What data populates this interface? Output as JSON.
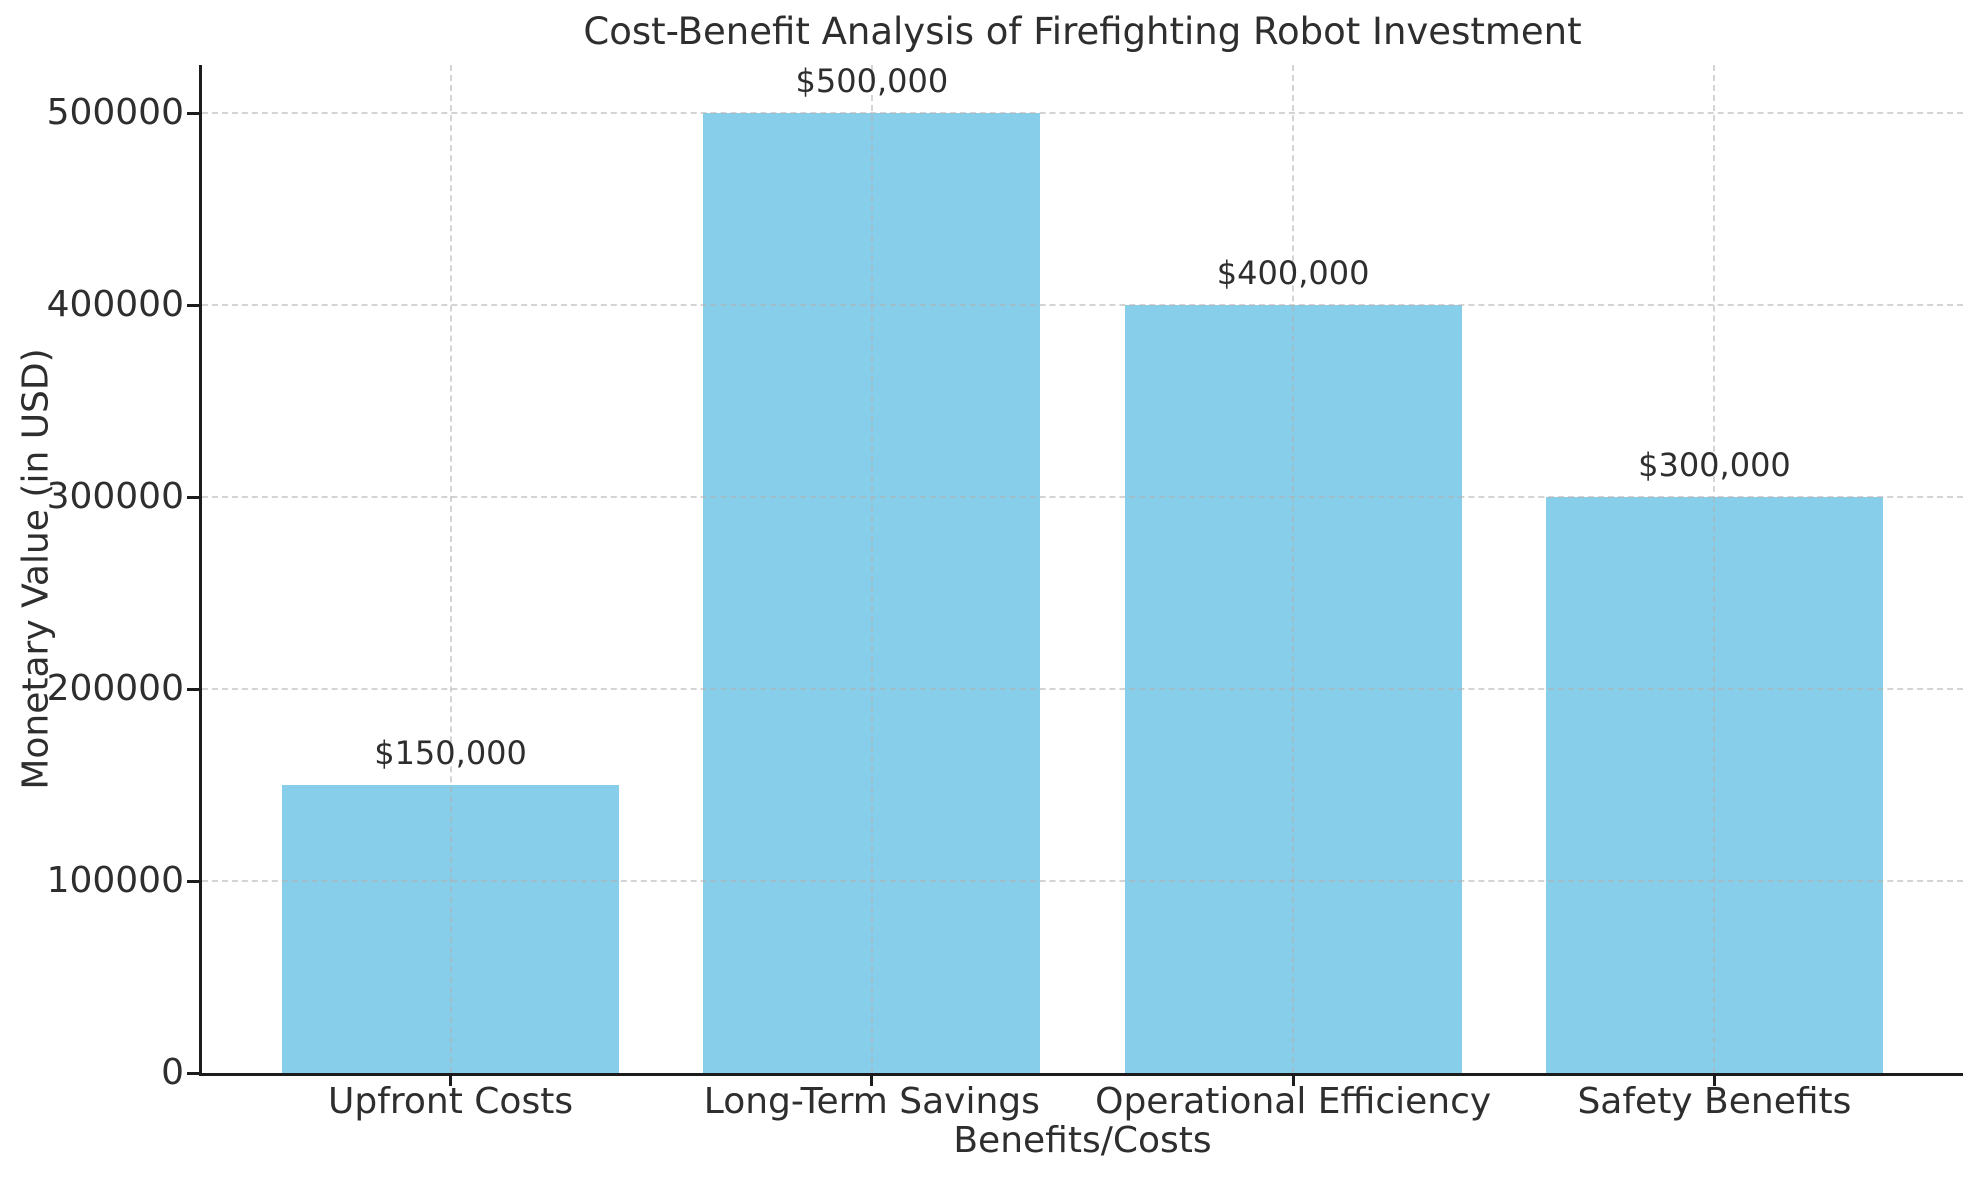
{
  "chart_data": {
    "type": "bar",
    "title": "Cost-Benefit Analysis of Firefighting Robot Investment",
    "xlabel": "Benefits/Costs",
    "ylabel": "Monetary Value (in USD)",
    "categories": [
      "Upfront Costs",
      "Long-Term Savings",
      "Operational Efficiency",
      "Safety Benefits"
    ],
    "values": [
      150000,
      500000,
      400000,
      300000
    ],
    "bar_value_labels": [
      "$150,000",
      "$500,000",
      "$400,000",
      "$300,000"
    ],
    "ylim": [
      0,
      525000
    ],
    "yticks": [
      0,
      100000,
      200000,
      300000,
      400000,
      500000
    ],
    "ytick_labels": [
      "0",
      "100000",
      "200000",
      "300000",
      "400000",
      "500000"
    ],
    "bar_color": "#87CEEB",
    "grid": "both-axes, dashed, drawn above bars",
    "grid_color": "#b0b0b0",
    "spine_color": "#1c1c1c",
    "text_color": "#2e2e2e",
    "background_color": "#ffffff",
    "bar_width_fraction": 0.8,
    "legend": "none"
  }
}
